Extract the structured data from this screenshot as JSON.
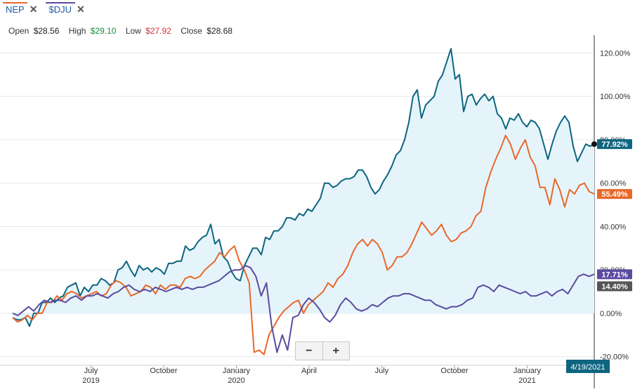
{
  "tabs": [
    {
      "label": "NEP",
      "close": "✕",
      "color": "#e8682a"
    },
    {
      "label": "$DJU",
      "close": "✕",
      "color": "#5b4aa0"
    }
  ],
  "ohlc": {
    "open_label": "Open",
    "open": "$28.56",
    "high_label": "High",
    "high": "$29.10",
    "low_label": "Low",
    "low": "$27.92",
    "close_label": "Close",
    "close": "$28.68",
    "colors": {
      "high": "#1a8a3a",
      "low": "#d0312d"
    }
  },
  "zoom": {
    "minus": "−",
    "plus": "+"
  },
  "chart_data": {
    "type": "line",
    "y_unit": "%",
    "ylim": [
      -24,
      125
    ],
    "y_ticks": [
      "120.00%",
      "100.00%",
      "80.00%",
      "60.00%",
      "40.00%",
      "20.00%",
      "0.00%",
      "-20.00%"
    ],
    "y_tick_values": [
      120,
      100,
      80,
      60,
      40,
      20,
      0,
      -20
    ],
    "x_ticks": [
      {
        "label": "July",
        "sub": "2019",
        "t": 14
      },
      {
        "label": "October",
        "sub": "",
        "t": 27
      },
      {
        "label": "January",
        "sub": "2020",
        "t": 40
      },
      {
        "label": "April",
        "sub": "",
        "t": 53
      },
      {
        "label": "July",
        "sub": "",
        "t": 66
      },
      {
        "label": "October",
        "sub": "",
        "t": 79
      },
      {
        "label": "January",
        "sub": "2021",
        "t": 92
      }
    ],
    "x_range": [
      0,
      104
    ],
    "current_date": "4/19/2021",
    "series": [
      {
        "color": "#0e6580",
        "fill": "#e5f4fb",
        "last_label": "77.92%",
        "values": [
          -2,
          -3,
          -3,
          -2,
          -6,
          0,
          0,
          5,
          5,
          7,
          5,
          7,
          8,
          12,
          13,
          14,
          8,
          12,
          10,
          13,
          13,
          16,
          15,
          13,
          14,
          20,
          21,
          24,
          20,
          17,
          22,
          20,
          21,
          19,
          21,
          20,
          18,
          23,
          23,
          24,
          24,
          31,
          29,
          30,
          33,
          35,
          36,
          41,
          32,
          34,
          26,
          24,
          19,
          16,
          15,
          22,
          26,
          30,
          30,
          27,
          35,
          34,
          38,
          38,
          40,
          44,
          44,
          43,
          46,
          45,
          48,
          47,
          50,
          53,
          60,
          60,
          58,
          59,
          61,
          62,
          62,
          63,
          66,
          66,
          63,
          58,
          55,
          57,
          61,
          64,
          68,
          73,
          75,
          80,
          88,
          100,
          103,
          90,
          96,
          98,
          100,
          107,
          110,
          116,
          122,
          108,
          110,
          93,
          100,
          101,
          96,
          99,
          101,
          98,
          100,
          92,
          90,
          85,
          90,
          89,
          92,
          88,
          86,
          89,
          88,
          85,
          78,
          71,
          78,
          84,
          88,
          91,
          88,
          77,
          70,
          74,
          78,
          77,
          78
        ]
      },
      {
        "color": "#e8682a",
        "last_label": "55.49%",
        "values": [
          -2,
          -4,
          -3,
          -1,
          -3,
          0,
          0,
          5,
          5,
          8,
          6,
          9,
          10,
          9,
          7,
          8,
          9,
          10,
          8,
          9,
          13,
          15,
          14,
          12,
          8,
          9,
          10,
          13,
          12,
          9,
          13,
          11,
          13,
          13,
          12,
          16,
          17,
          16,
          17,
          20,
          22,
          24,
          28,
          26,
          29,
          31,
          24,
          20,
          14,
          -18,
          -17,
          -19,
          -10,
          -6,
          -2,
          1,
          3,
          5,
          6,
          0,
          4,
          6,
          8,
          10,
          14,
          12,
          16,
          18,
          22,
          28,
          32,
          34,
          31,
          34,
          32,
          28,
          20,
          22,
          26,
          26,
          28,
          32,
          37,
          42,
          39,
          36,
          38,
          41,
          36,
          33,
          34,
          37,
          38,
          40,
          45,
          47,
          58,
          65,
          71,
          76,
          82,
          78,
          71,
          76,
          80,
          72,
          68,
          58,
          58,
          50,
          62,
          57,
          49,
          57,
          55,
          59,
          60,
          56,
          55
        ]
      },
      {
        "color": "#5b4aa0",
        "last_label": "17.71%",
        "values": [
          0,
          -1,
          1,
          3,
          1,
          4,
          6,
          5,
          6,
          6,
          5,
          7,
          8,
          6,
          8,
          8,
          9,
          8,
          7,
          9,
          10,
          12,
          13,
          11,
          10,
          11,
          10,
          12,
          11,
          10,
          11,
          12,
          11,
          12,
          11,
          12,
          12,
          13,
          14,
          15,
          17,
          19,
          20,
          20,
          22,
          21,
          17,
          8,
          14,
          -6,
          -18,
          -10,
          -17,
          -2,
          -1,
          4,
          7,
          5,
          2,
          -2,
          -4,
          -1,
          4,
          7,
          5,
          2,
          1,
          2,
          4,
          3,
          5,
          7,
          8,
          8,
          9,
          9,
          8,
          7,
          6,
          6,
          4,
          3,
          2,
          3,
          3,
          4,
          6,
          7,
          12,
          13,
          12,
          10,
          13,
          12,
          11,
          10,
          9,
          10,
          8,
          8,
          9,
          10,
          8,
          10,
          11,
          9,
          13,
          17,
          18,
          17,
          18
        ]
      },
      {
        "color": "#555555",
        "last_label": "14.40%",
        "values": []
      }
    ]
  }
}
